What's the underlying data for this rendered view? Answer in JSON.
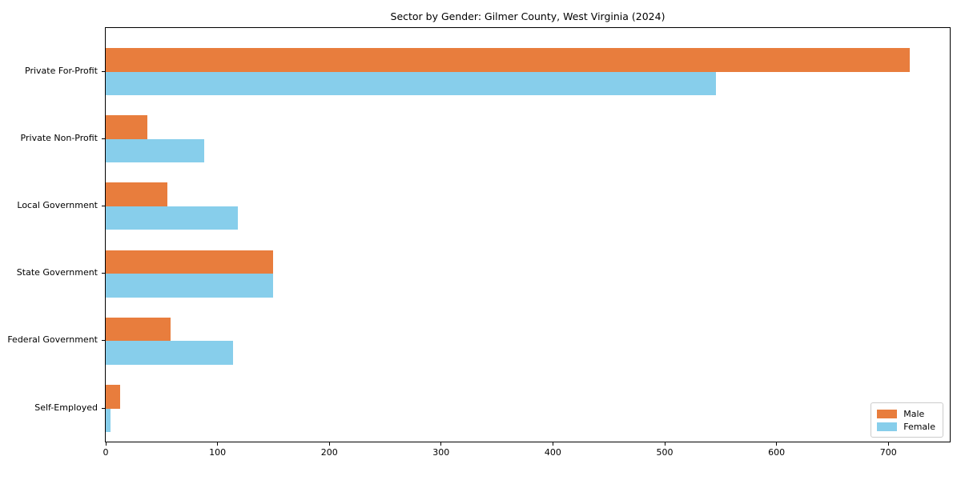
{
  "figure": {
    "background": "#ffffff",
    "axis_color": "#000000"
  },
  "chart_data": {
    "type": "bar",
    "orientation": "horizontal",
    "title": "Sector by Gender: Gilmer County, West Virginia (2024)",
    "categories": [
      "Private For-Profit",
      "Private Non-Profit",
      "Local Government",
      "State Government",
      "Federal Government",
      "Self-Employed"
    ],
    "series": [
      {
        "name": "Male",
        "color": "#e87d3d",
        "values": [
          719,
          37,
          55,
          150,
          58,
          13
        ]
      },
      {
        "name": "Female",
        "color": "#87ceeb",
        "values": [
          546,
          88,
          118,
          150,
          114,
          4
        ]
      }
    ],
    "xlabel": "",
    "ylabel": "",
    "xlim": [
      0,
      755
    ],
    "xticks": [
      0,
      100,
      200,
      300,
      400,
      500,
      600,
      700
    ],
    "grid": false,
    "legend_position": "lower right"
  }
}
